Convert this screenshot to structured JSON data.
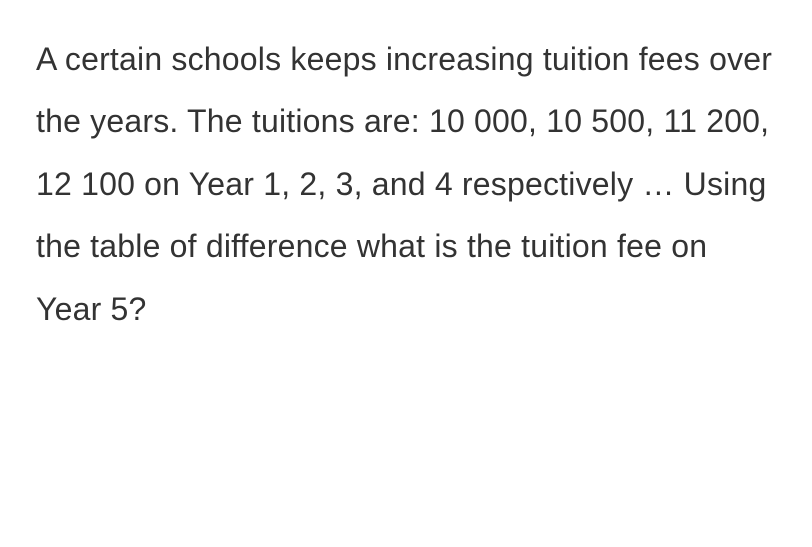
{
  "question": {
    "text": "A certain schools keeps increasing tuition fees over the years. The tuitions are: 10 000, 10 500, 11 200, 12 100 on Year 1, 2, 3, and 4 respectively … Using the table of difference what is the tuition fee on Year 5?",
    "font_size": 32,
    "line_height": 1.95,
    "text_color": "#333333",
    "background_color": "#ffffff",
    "font_family": "Arial, Helvetica, sans-serif",
    "font_weight": 400
  }
}
